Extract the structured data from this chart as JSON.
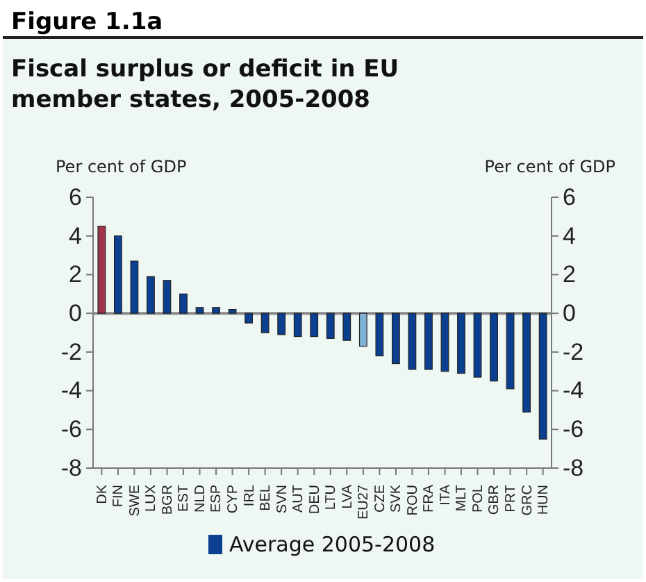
{
  "chart_data": {
    "type": "bar",
    "title": "Figure 1.1a",
    "subtitle": "Fiscal surplus or deficit in EU member states, 2005-2008",
    "ylabel": "Per cent of GDP",
    "y2label": "Per cent of GDP",
    "categories": [
      "DK",
      "FIN",
      "SWE",
      "LUX",
      "BGR",
      "EST",
      "NLD",
      "ESP",
      "CYP",
      "IRL",
      "BEL",
      "SVN",
      "AUT",
      "DEU",
      "LTU",
      "LVA",
      "EU27",
      "CZE",
      "SVK",
      "ROU",
      "FRA",
      "ITA",
      "MLT",
      "POL",
      "GBR",
      "PRT",
      "GRC",
      "HUN"
    ],
    "series": [
      {
        "name": "Average 2005-2008",
        "color": "#0b3f8f",
        "colors": [
          "#a0334a",
          "#0b3f8f",
          "#0b3f8f",
          "#0b3f8f",
          "#0b3f8f",
          "#0b3f8f",
          "#0b3f8f",
          "#0b3f8f",
          "#0b3f8f",
          "#0b3f8f",
          "#0b3f8f",
          "#0b3f8f",
          "#0b3f8f",
          "#0b3f8f",
          "#0b3f8f",
          "#0b3f8f",
          "#7fb2d4",
          "#0b3f8f",
          "#0b3f8f",
          "#0b3f8f",
          "#0b3f8f",
          "#0b3f8f",
          "#0b3f8f",
          "#0b3f8f",
          "#0b3f8f",
          "#0b3f8f",
          "#0b3f8f",
          "#0b3f8f"
        ],
        "values": [
          4.5,
          4.0,
          2.7,
          1.9,
          1.7,
          1.0,
          0.3,
          0.3,
          0.2,
          -0.5,
          -1.0,
          -1.1,
          -1.2,
          -1.2,
          -1.3,
          -1.4,
          -1.7,
          -2.2,
          -2.6,
          -2.9,
          -2.9,
          -3.0,
          -3.1,
          -3.3,
          -3.5,
          -3.9,
          -5.1,
          -6.5
        ]
      }
    ],
    "ylim": [
      -8,
      6
    ],
    "yticks": [
      -8,
      -6,
      -4,
      -2,
      0,
      2,
      4,
      6
    ],
    "y2lim": [
      -8,
      6
    ],
    "y2ticks": [
      -8,
      -6,
      -4,
      -2,
      0,
      2,
      4,
      6
    ],
    "ref_lines": [
      {
        "axis": "y",
        "value": 0,
        "color": "#8a8a8a"
      }
    ],
    "grid": false,
    "legend": "bottom"
  }
}
